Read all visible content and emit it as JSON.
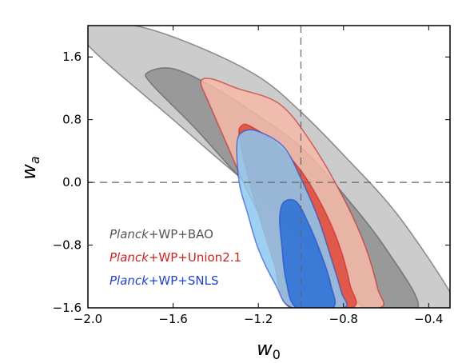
{
  "chart_data": {
    "type": "contour",
    "xlabel_base": "w",
    "xlabel_sub": "0",
    "ylabel_base": "w",
    "ylabel_sub": "a",
    "xlim": [
      -2.0,
      -0.3
    ],
    "ylim": [
      -1.6,
      2.0
    ],
    "xticks": [
      -2.0,
      -1.6,
      -1.2,
      -0.8,
      -0.4
    ],
    "xtick_labels": [
      "−2.0",
      "−1.6",
      "−1.2",
      "−0.8",
      "−0.4"
    ],
    "yticks": [
      -1.6,
      -0.8,
      0.0,
      0.8,
      1.6
    ],
    "ytick_labels": [
      "−1.6",
      "−0.8",
      "0.0",
      "0.8",
      "1.6"
    ],
    "reference_lines": {
      "x": -1.0,
      "y": 0.0
    },
    "legend_position": "lower-left",
    "series": [
      {
        "name_italic": "Planck",
        "name_rest": "+WP+BAO",
        "color": "#555555",
        "fills": [
          "#cccccc",
          "#999999"
        ],
        "contours": [
          [
            [
              -2.0,
              2.0
            ],
            [
              -1.78,
              2.0
            ],
            [
              -1.5,
              1.75
            ],
            [
              -1.2,
              1.35
            ],
            [
              -1.0,
              0.9
            ],
            [
              -0.8,
              0.35
            ],
            [
              -0.55,
              -0.4
            ],
            [
              -0.3,
              -1.4
            ],
            [
              -0.3,
              -1.6
            ],
            [
              -0.5,
              -1.6
            ],
            [
              -0.8,
              -0.95
            ],
            [
              -1.05,
              -0.4
            ],
            [
              -1.3,
              0.1
            ],
            [
              -1.6,
              0.8
            ],
            [
              -2.0,
              1.75
            ]
          ],
          [
            [
              -1.72,
              1.4
            ],
            [
              -1.6,
              1.45
            ],
            [
              -1.4,
              1.2
            ],
            [
              -1.2,
              0.85
            ],
            [
              -1.0,
              0.45
            ],
            [
              -0.8,
              -0.15
            ],
            [
              -0.6,
              -0.85
            ],
            [
              -0.45,
              -1.6
            ],
            [
              -0.7,
              -1.6
            ],
            [
              -0.9,
              -1.05
            ],
            [
              -1.1,
              -0.45
            ],
            [
              -1.3,
              0.1
            ],
            [
              -1.5,
              0.7
            ],
            [
              -1.7,
              1.25
            ]
          ]
        ]
      },
      {
        "name_italic": "Planck",
        "name_rest": "+WP+Union2.1",
        "color": "#cc2222",
        "fills": [
          "#f5b8a8",
          "#dd4a3a"
        ],
        "contours": [
          [
            [
              -1.47,
              1.28
            ],
            [
              -1.42,
              1.32
            ],
            [
              -1.3,
              1.2
            ],
            [
              -1.1,
              1.0
            ],
            [
              -0.95,
              0.5
            ],
            [
              -0.8,
              -0.2
            ],
            [
              -0.7,
              -0.8
            ],
            [
              -0.64,
              -1.35
            ],
            [
              -0.63,
              -1.6
            ],
            [
              -0.9,
              -1.6
            ],
            [
              -1.0,
              -1.3
            ],
            [
              -1.1,
              -0.95
            ],
            [
              -1.18,
              -0.5
            ],
            [
              -1.27,
              0.0
            ],
            [
              -1.35,
              0.5
            ],
            [
              -1.43,
              1.0
            ]
          ],
          [
            [
              -1.28,
              0.72
            ],
            [
              -1.24,
              0.72
            ],
            [
              -1.12,
              0.5
            ],
            [
              -1.0,
              0.15
            ],
            [
              -0.9,
              -0.3
            ],
            [
              -0.82,
              -0.8
            ],
            [
              -0.77,
              -1.3
            ],
            [
              -0.76,
              -1.6
            ],
            [
              -1.05,
              -1.6
            ],
            [
              -1.13,
              -1.0
            ],
            [
              -1.2,
              -0.4
            ],
            [
              -1.26,
              0.2
            ],
            [
              -1.29,
              0.6
            ]
          ]
        ]
      },
      {
        "name_italic": "Planck",
        "name_rest": "+WP+SNLS",
        "color": "#2244cc",
        "fills": [
          "#8cc8f0",
          "#2a6fd6"
        ],
        "contours": [
          [
            [
              -1.3,
              0.5
            ],
            [
              -1.27,
              0.65
            ],
            [
              -1.2,
              0.65
            ],
            [
              -1.08,
              0.45
            ],
            [
              -1.0,
              0.05
            ],
            [
              -0.92,
              -0.45
            ],
            [
              -0.86,
              -0.95
            ],
            [
              -0.81,
              -1.4
            ],
            [
              -0.8,
              -1.6
            ],
            [
              -1.04,
              -1.6
            ],
            [
              -1.12,
              -1.3
            ],
            [
              -1.2,
              -0.85
            ],
            [
              -1.25,
              -0.4
            ],
            [
              -1.29,
              0.0
            ]
          ],
          [
            [
              -1.08,
              -0.25
            ],
            [
              -1.02,
              -0.25
            ],
            [
              -0.96,
              -0.55
            ],
            [
              -0.9,
              -0.95
            ],
            [
              -0.86,
              -1.3
            ],
            [
              -0.85,
              -1.6
            ],
            [
              -1.02,
              -1.6
            ],
            [
              -1.07,
              -1.25
            ],
            [
              -1.09,
              -0.8
            ],
            [
              -1.1,
              -0.45
            ]
          ]
        ]
      }
    ]
  }
}
